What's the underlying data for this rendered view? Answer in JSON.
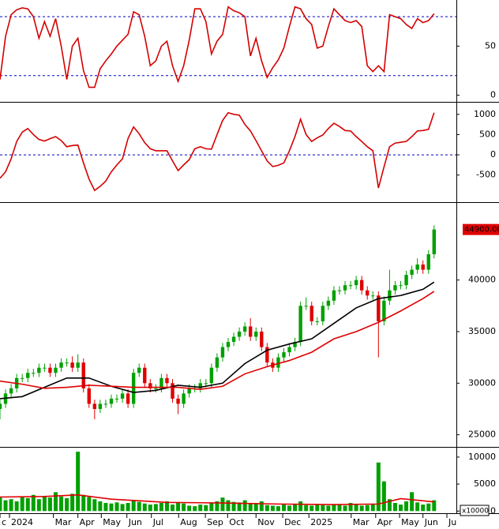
{
  "chart_data": [
    {
      "type": "line",
      "x": [
        0,
        1,
        2,
        3,
        4,
        5,
        6,
        7,
        8,
        9,
        10,
        11,
        12,
        13,
        14,
        15,
        16,
        17,
        18,
        19,
        20,
        21,
        22,
        23,
        24,
        25,
        26,
        27,
        28,
        29,
        30,
        31,
        32,
        33,
        34,
        35,
        36,
        37,
        38,
        39,
        40,
        41,
        42,
        43,
        44,
        45,
        46,
        47,
        48,
        49,
        50,
        51,
        52,
        53,
        54,
        55,
        56,
        57,
        58,
        59,
        60,
        61,
        62,
        63,
        64,
        65,
        66,
        67,
        68,
        69,
        70,
        71,
        72,
        73,
        74,
        75,
        76,
        77,
        78
      ],
      "series": [
        {
          "color": "#d40000",
          "values": [
            16,
            60,
            82,
            87,
            89,
            88,
            80,
            58,
            75,
            60,
            78,
            50,
            16,
            50,
            58,
            25,
            8,
            8,
            27,
            35,
            42,
            50,
            56,
            62,
            85,
            82,
            60,
            30,
            35,
            50,
            55,
            30,
            14,
            30,
            56,
            88,
            88,
            75,
            42,
            55,
            62,
            90,
            86,
            84,
            80,
            40,
            58,
            35,
            18,
            28,
            36,
            48,
            70,
            90,
            88,
            78,
            72,
            48,
            50,
            70,
            88,
            82,
            76,
            74,
            76,
            70,
            30,
            24,
            30,
            24,
            82,
            80,
            78,
            72,
            68,
            78,
            74,
            76,
            83
          ]
        }
      ],
      "levels": [
        80,
        20
      ],
      "level_color": "#0000c0",
      "xlim": [
        0,
        82
      ],
      "ylim": [
        -6,
        97
      ],
      "yticks": [
        0,
        50
      ]
    },
    {
      "type": "line",
      "x": [
        0,
        1,
        2,
        3,
        4,
        5,
        6,
        7,
        8,
        9,
        10,
        11,
        12,
        13,
        14,
        15,
        16,
        17,
        18,
        19,
        20,
        21,
        22,
        23,
        24,
        25,
        26,
        27,
        28,
        29,
        30,
        31,
        32,
        33,
        34,
        35,
        36,
        37,
        38,
        39,
        40,
        41,
        42,
        43,
        44,
        45,
        46,
        47,
        48,
        49,
        50,
        51,
        52,
        53,
        54,
        55,
        56,
        57,
        58,
        59,
        60,
        61,
        62,
        63,
        64,
        65,
        66,
        67,
        68,
        69,
        70,
        71,
        72,
        73,
        74,
        75,
        76,
        77,
        78
      ],
      "series": [
        {
          "color": "#d40000",
          "values": [
            -580,
            -420,
            -100,
            330,
            560,
            650,
            500,
            380,
            340,
            400,
            450,
            350,
            200,
            230,
            240,
            -200,
            -600,
            -880,
            -780,
            -650,
            -420,
            -250,
            -100,
            400,
            690,
            520,
            300,
            150,
            100,
            100,
            100,
            -150,
            -390,
            -250,
            -120,
            150,
            200,
            150,
            140,
            500,
            850,
            1040,
            1000,
            980,
            750,
            590,
            350,
            100,
            -150,
            -290,
            -260,
            -200,
            100,
            450,
            880,
            500,
            330,
            420,
            490,
            650,
            780,
            700,
            600,
            590,
            450,
            330,
            200,
            100,
            -820,
            -300,
            200,
            290,
            310,
            330,
            450,
            590,
            600,
            630,
            1040
          ]
        }
      ],
      "levels": [
        0
      ],
      "level_color": "#0000c0",
      "xlim": [
        0,
        82
      ],
      "ylim": [
        -1150,
        1270
      ],
      "yticks": [
        -500,
        0,
        500,
        1000
      ]
    },
    {
      "type": "candlestick",
      "x": [
        0,
        1,
        2,
        3,
        4,
        5,
        6,
        7,
        8,
        9,
        10,
        11,
        12,
        13,
        14,
        15,
        16,
        17,
        18,
        19,
        20,
        21,
        22,
        23,
        24,
        25,
        26,
        27,
        28,
        29,
        30,
        31,
        32,
        33,
        34,
        35,
        36,
        37,
        38,
        39,
        40,
        41,
        42,
        43,
        44,
        45,
        46,
        47,
        48,
        49,
        50,
        51,
        52,
        53,
        54,
        55,
        56,
        57,
        58,
        59,
        60,
        61,
        62,
        63,
        64,
        65,
        66,
        67,
        68,
        69,
        70,
        71,
        72,
        73,
        74,
        75,
        76,
        77,
        78
      ],
      "open": [
        27500,
        28000,
        29000,
        29500,
        30500,
        30500,
        31000,
        31000,
        31500,
        31500,
        31000,
        31500,
        32000,
        32000,
        31500,
        32000,
        29500,
        28000,
        27500,
        28000,
        28000,
        28500,
        28500,
        29000,
        28000,
        31000,
        31500,
        30000,
        29500,
        29500,
        30500,
        30000,
        28500,
        28000,
        29000,
        29500,
        29500,
        30000,
        30000,
        31500,
        32500,
        33500,
        34000,
        34500,
        35000,
        35500,
        34500,
        35000,
        33500,
        32000,
        31500,
        32500,
        33000,
        33500,
        34000,
        37500,
        37500,
        36000,
        36000,
        37500,
        38000,
        39000,
        39000,
        39500,
        39500,
        40000,
        39000,
        38500,
        38500,
        36000,
        38000,
        39000,
        39500,
        39500,
        40500,
        41000,
        41500,
        41000,
        42500
      ],
      "high": [
        28400,
        29400,
        29900,
        30900,
        30900,
        31400,
        31400,
        31900,
        31900,
        31900,
        31900,
        32400,
        32400,
        32600,
        32800,
        32400,
        29900,
        28400,
        28400,
        28400,
        28900,
        28900,
        29400,
        29400,
        31400,
        31900,
        31900,
        30400,
        29900,
        30900,
        30900,
        30400,
        28900,
        29400,
        29900,
        29900,
        30400,
        30400,
        31900,
        32900,
        33900,
        34400,
        34900,
        35400,
        35900,
        36300,
        35400,
        35400,
        33900,
        32400,
        32900,
        33400,
        33900,
        34400,
        37900,
        38300,
        37900,
        36400,
        37900,
        38400,
        39400,
        39400,
        39900,
        39900,
        40400,
        40400,
        39400,
        38900,
        38900,
        38400,
        41000,
        39900,
        39900,
        40900,
        41400,
        42100,
        41900,
        42900,
        45300
      ],
      "low": [
        26500,
        27600,
        28600,
        29100,
        30100,
        30100,
        30600,
        30600,
        31100,
        30600,
        30600,
        31100,
        31600,
        31100,
        31100,
        29100,
        27600,
        26500,
        27100,
        27600,
        27600,
        28100,
        28100,
        27600,
        27600,
        30600,
        29600,
        29100,
        29100,
        29100,
        29600,
        28100,
        27000,
        27600,
        28600,
        29100,
        29100,
        29600,
        29600,
        31100,
        32100,
        33100,
        33600,
        34100,
        34600,
        34100,
        34100,
        33100,
        31600,
        31100,
        31100,
        32100,
        32600,
        33100,
        33600,
        37100,
        35600,
        35600,
        35600,
        37100,
        37600,
        38600,
        38600,
        39100,
        39100,
        38600,
        38100,
        38100,
        32500,
        35600,
        37600,
        38600,
        39100,
        39100,
        40100,
        40600,
        40600,
        40600,
        42100
      ],
      "close": [
        28000,
        29000,
        29500,
        30500,
        30500,
        31000,
        31000,
        31500,
        31500,
        31000,
        31500,
        32000,
        32000,
        31500,
        32000,
        29500,
        28000,
        27500,
        28000,
        28000,
        28500,
        28500,
        29000,
        28000,
        31000,
        31500,
        30000,
        29500,
        29500,
        30500,
        30000,
        28500,
        28000,
        29000,
        29500,
        29500,
        30000,
        30000,
        31500,
        32500,
        33500,
        34000,
        34500,
        35000,
        35500,
        34500,
        35000,
        33500,
        32000,
        31500,
        32500,
        33000,
        33500,
        34000,
        37500,
        37500,
        36000,
        36000,
        37500,
        38000,
        39000,
        39000,
        39500,
        39500,
        40000,
        39000,
        38500,
        38500,
        36000,
        38000,
        39000,
        39500,
        39500,
        40500,
        41000,
        41500,
        41000,
        42500,
        44900
      ],
      "up_color": "#00a000",
      "down_color": "#e00000",
      "series": [
        {
          "color": "#000000",
          "x": [
            0,
            4,
            8,
            12,
            16,
            20,
            24,
            28,
            32,
            36,
            40,
            44,
            48,
            52,
            56,
            60,
            64,
            68,
            72,
            76,
            78
          ],
          "values": [
            28500,
            28700,
            29600,
            30500,
            30500,
            29700,
            29100,
            29300,
            29800,
            29600,
            30000,
            31900,
            33200,
            33800,
            34300,
            35800,
            37300,
            38200,
            38500,
            39100,
            39800
          ]
        },
        {
          "color": "#e00000",
          "x": [
            0,
            4,
            8,
            12,
            16,
            20,
            24,
            28,
            32,
            36,
            40,
            44,
            48,
            52,
            56,
            60,
            64,
            68,
            72,
            76,
            78
          ],
          "values": [
            30200,
            29900,
            29500,
            29600,
            29800,
            29700,
            29600,
            29600,
            29600,
            29400,
            29700,
            30900,
            31600,
            32200,
            33000,
            34300,
            35000,
            35900,
            37000,
            38200,
            38900
          ]
        }
      ],
      "last_price": {
        "value": 44900,
        "label": "44900.00"
      },
      "xlim": [
        0,
        82
      ],
      "ylim": [
        23900,
        47400
      ],
      "yticks": [
        25000,
        30000,
        35000,
        40000
      ]
    },
    {
      "type": "bar",
      "x": [
        0,
        1,
        2,
        3,
        4,
        5,
        6,
        7,
        8,
        9,
        10,
        11,
        12,
        13,
        14,
        15,
        16,
        17,
        18,
        19,
        20,
        21,
        22,
        23,
        24,
        25,
        26,
        27,
        28,
        29,
        30,
        31,
        32,
        33,
        34,
        35,
        36,
        37,
        38,
        39,
        40,
        41,
        42,
        43,
        44,
        45,
        46,
        47,
        48,
        49,
        50,
        51,
        52,
        53,
        54,
        55,
        56,
        57,
        58,
        59,
        60,
        61,
        62,
        63,
        64,
        65,
        66,
        67,
        68,
        69,
        70,
        71,
        72,
        73,
        74,
        75,
        76,
        77,
        78
      ],
      "values": [
        2500,
        2000,
        2200,
        1800,
        2600,
        2400,
        3000,
        2200,
        2800,
        2500,
        3500,
        2700,
        2400,
        3200,
        11000,
        3000,
        2600,
        2200,
        1800,
        1500,
        1400,
        1600,
        1300,
        1500,
        2000,
        1700,
        1400,
        1200,
        1300,
        1500,
        1800,
        1200,
        1600,
        1400,
        1000,
        900,
        1200,
        1100,
        1500,
        1800,
        2500,
        2000,
        1700,
        1600,
        2000,
        1400,
        1500,
        1800,
        1100,
        1000,
        900,
        1200,
        1000,
        1300,
        1800,
        1100,
        1000,
        1200,
        1100,
        1000,
        1300,
        1200,
        1000,
        1500,
        1200,
        1000,
        1100,
        1300,
        9000,
        5500,
        2200,
        1500,
        1200,
        1800,
        3500,
        1600,
        1200,
        1400,
        2000
      ],
      "color": "#00a000",
      "series": [
        {
          "color": "#e00000",
          "x": [
            0,
            8,
            14,
            20,
            30,
            40,
            50,
            60,
            68,
            72,
            78
          ],
          "values": [
            2600,
            2700,
            3000,
            2200,
            1600,
            1500,
            1300,
            1200,
            1300,
            2300,
            1700
          ]
        }
      ],
      "unit_label": "x10000",
      "xlim": [
        0,
        82
      ],
      "ylim": [
        -400,
        11600
      ],
      "yticks": [
        0,
        5000,
        10000
      ],
      "xticks": [
        {
          "value": 0,
          "label": "c"
        },
        {
          "value": 1.7,
          "label": "2024"
        },
        {
          "value": 9.6,
          "label": "Mar"
        },
        {
          "value": 14.0,
          "label": "Apr"
        },
        {
          "value": 18.2,
          "label": "May"
        },
        {
          "value": 22.8,
          "label": "Jun"
        },
        {
          "value": 27.2,
          "label": "Jul"
        },
        {
          "value": 32.1,
          "label": "Aug"
        },
        {
          "value": 36.9,
          "label": "Sep"
        },
        {
          "value": 40.9,
          "label": "Oct"
        },
        {
          "value": 46.0,
          "label": "Nov"
        },
        {
          "value": 50.8,
          "label": "Dec"
        },
        {
          "value": 55.5,
          "label": "2025"
        },
        {
          "value": 63.1,
          "label": "Mar"
        },
        {
          "value": 67.5,
          "label": "Apr"
        },
        {
          "value": 71.8,
          "label": "May"
        },
        {
          "value": 76.0,
          "label": "Jun"
        },
        {
          "value": 80.3,
          "label": "Ju"
        }
      ]
    }
  ]
}
